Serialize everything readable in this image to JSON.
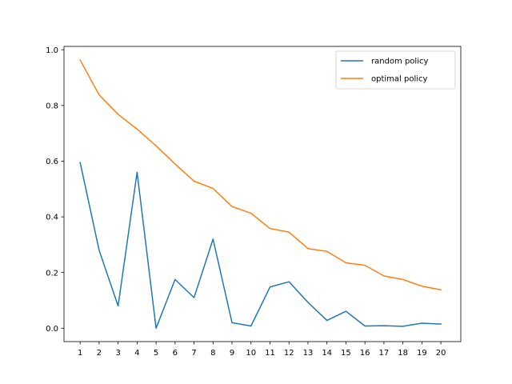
{
  "chart_data": {
    "type": "line",
    "title": "",
    "xlabel": "",
    "ylabel": "",
    "x": [
      1,
      2,
      3,
      4,
      5,
      6,
      7,
      8,
      9,
      10,
      11,
      12,
      13,
      14,
      15,
      16,
      17,
      18,
      19,
      20
    ],
    "xlim": [
      0.15,
      21.05
    ],
    "ylim": [
      -0.048,
      1.012
    ],
    "yticks": [
      0.0,
      0.2,
      0.4,
      0.6,
      0.8,
      1.0
    ],
    "ytick_labels": [
      "0.0",
      "0.2",
      "0.4",
      "0.6",
      "0.8",
      "1.0"
    ],
    "grid": false,
    "legend_position": "top-right",
    "series": [
      {
        "name": "random policy",
        "color": "#1f77b4",
        "values": [
          0.595,
          0.28,
          0.08,
          0.56,
          0.0,
          0.175,
          0.11,
          0.32,
          0.02,
          0.008,
          0.148,
          0.167,
          0.093,
          0.028,
          0.061,
          0.008,
          0.009,
          0.007,
          0.018,
          0.015
        ]
      },
      {
        "name": "optimal policy",
        "color": "#ff7f0e",
        "values": [
          0.963,
          0.838,
          0.768,
          0.715,
          0.655,
          0.59,
          0.528,
          0.502,
          0.437,
          0.413,
          0.358,
          0.345,
          0.286,
          0.276,
          0.235,
          0.226,
          0.188,
          0.175,
          0.151,
          0.138
        ]
      }
    ]
  }
}
